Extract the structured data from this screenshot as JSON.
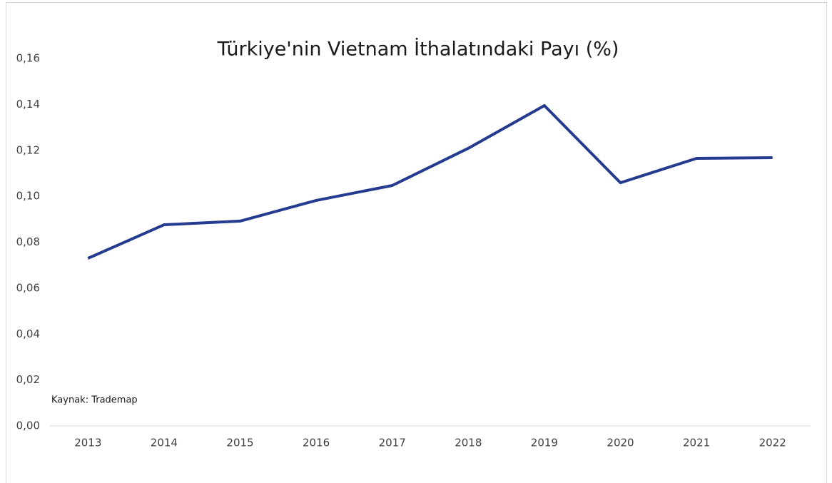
{
  "chart_data": {
    "type": "line",
    "title": "Türkiye'nin Vietnam İthalatındaki Payı (%)",
    "annotation": "Kaynak: Trademap",
    "categories": [
      "2013",
      "2014",
      "2015",
      "2016",
      "2017",
      "2018",
      "2019",
      "2020",
      "2021",
      "2022"
    ],
    "series": [
      {
        "name": "Pay",
        "color": "#253b8f",
        "values": [
          0.073,
          0.0876,
          0.0892,
          0.0982,
          0.1047,
          0.1209,
          0.1395,
          0.1059,
          0.1165,
          0.1168
        ]
      }
    ],
    "ylim": [
      0,
      0.16
    ],
    "yticks": [
      {
        "value": 0,
        "label": "0,00"
      },
      {
        "value": 0.02,
        "label": "0,02"
      },
      {
        "value": 0.04,
        "label": "0,04"
      },
      {
        "value": 0.06,
        "label": "0,06"
      },
      {
        "value": 0.08,
        "label": "0,08"
      },
      {
        "value": 0.1,
        "label": "0,10"
      },
      {
        "value": 0.12,
        "label": "0,12"
      },
      {
        "value": 0.14,
        "label": "0,14"
      },
      {
        "value": 0.16,
        "label": "0,16"
      }
    ],
    "grid": false
  }
}
